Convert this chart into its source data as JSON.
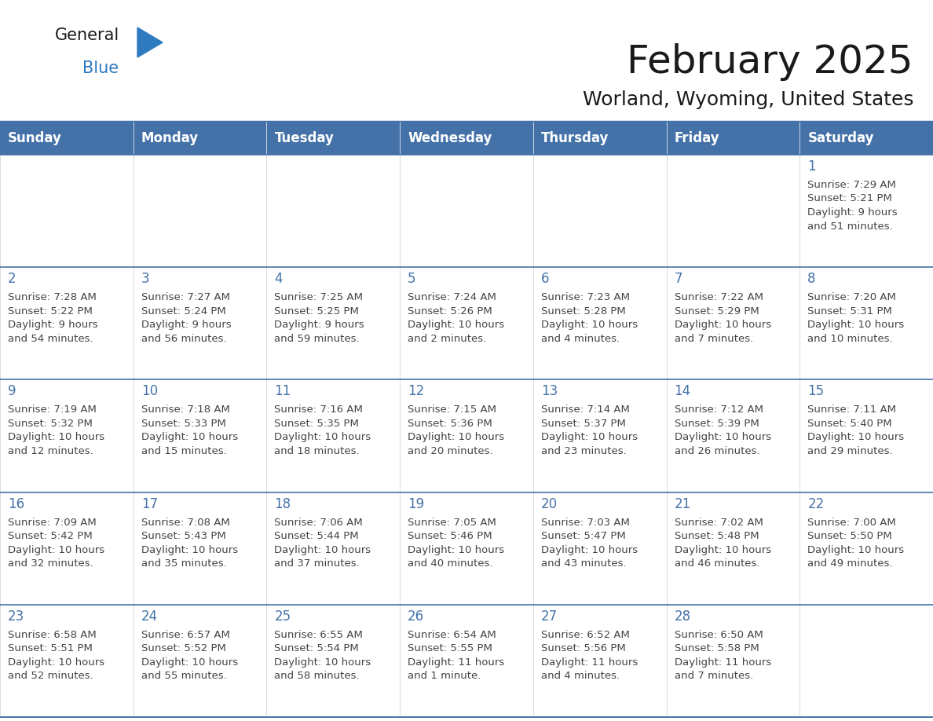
{
  "title": "February 2025",
  "subtitle": "Worland, Wyoming, United States",
  "days_of_week": [
    "Sunday",
    "Monday",
    "Tuesday",
    "Wednesday",
    "Thursday",
    "Friday",
    "Saturday"
  ],
  "header_bg": "#4472a8",
  "header_text": "#ffffff",
  "cell_bg": "#ffffff",
  "cell_bg_alt": "#f0f0f0",
  "border_color": "#4472a8",
  "row_border_color": "#4472a8",
  "day_num_color": "#4472a8",
  "text_color": "#444444",
  "title_color": "#1a1a1a",
  "logo_general_color": "#1a1a1a",
  "logo_blue_color": "#2e7abf",
  "logo_triangle_color": "#2e7abf",
  "calendar_data": [
    [
      {
        "day": null,
        "info": ""
      },
      {
        "day": null,
        "info": ""
      },
      {
        "day": null,
        "info": ""
      },
      {
        "day": null,
        "info": ""
      },
      {
        "day": null,
        "info": ""
      },
      {
        "day": null,
        "info": ""
      },
      {
        "day": 1,
        "info": "Sunrise: 7:29 AM\nSunset: 5:21 PM\nDaylight: 9 hours\nand 51 minutes."
      }
    ],
    [
      {
        "day": 2,
        "info": "Sunrise: 7:28 AM\nSunset: 5:22 PM\nDaylight: 9 hours\nand 54 minutes."
      },
      {
        "day": 3,
        "info": "Sunrise: 7:27 AM\nSunset: 5:24 PM\nDaylight: 9 hours\nand 56 minutes."
      },
      {
        "day": 4,
        "info": "Sunrise: 7:25 AM\nSunset: 5:25 PM\nDaylight: 9 hours\nand 59 minutes."
      },
      {
        "day": 5,
        "info": "Sunrise: 7:24 AM\nSunset: 5:26 PM\nDaylight: 10 hours\nand 2 minutes."
      },
      {
        "day": 6,
        "info": "Sunrise: 7:23 AM\nSunset: 5:28 PM\nDaylight: 10 hours\nand 4 minutes."
      },
      {
        "day": 7,
        "info": "Sunrise: 7:22 AM\nSunset: 5:29 PM\nDaylight: 10 hours\nand 7 minutes."
      },
      {
        "day": 8,
        "info": "Sunrise: 7:20 AM\nSunset: 5:31 PM\nDaylight: 10 hours\nand 10 minutes."
      }
    ],
    [
      {
        "day": 9,
        "info": "Sunrise: 7:19 AM\nSunset: 5:32 PM\nDaylight: 10 hours\nand 12 minutes."
      },
      {
        "day": 10,
        "info": "Sunrise: 7:18 AM\nSunset: 5:33 PM\nDaylight: 10 hours\nand 15 minutes."
      },
      {
        "day": 11,
        "info": "Sunrise: 7:16 AM\nSunset: 5:35 PM\nDaylight: 10 hours\nand 18 minutes."
      },
      {
        "day": 12,
        "info": "Sunrise: 7:15 AM\nSunset: 5:36 PM\nDaylight: 10 hours\nand 20 minutes."
      },
      {
        "day": 13,
        "info": "Sunrise: 7:14 AM\nSunset: 5:37 PM\nDaylight: 10 hours\nand 23 minutes."
      },
      {
        "day": 14,
        "info": "Sunrise: 7:12 AM\nSunset: 5:39 PM\nDaylight: 10 hours\nand 26 minutes."
      },
      {
        "day": 15,
        "info": "Sunrise: 7:11 AM\nSunset: 5:40 PM\nDaylight: 10 hours\nand 29 minutes."
      }
    ],
    [
      {
        "day": 16,
        "info": "Sunrise: 7:09 AM\nSunset: 5:42 PM\nDaylight: 10 hours\nand 32 minutes."
      },
      {
        "day": 17,
        "info": "Sunrise: 7:08 AM\nSunset: 5:43 PM\nDaylight: 10 hours\nand 35 minutes."
      },
      {
        "day": 18,
        "info": "Sunrise: 7:06 AM\nSunset: 5:44 PM\nDaylight: 10 hours\nand 37 minutes."
      },
      {
        "day": 19,
        "info": "Sunrise: 7:05 AM\nSunset: 5:46 PM\nDaylight: 10 hours\nand 40 minutes."
      },
      {
        "day": 20,
        "info": "Sunrise: 7:03 AM\nSunset: 5:47 PM\nDaylight: 10 hours\nand 43 minutes."
      },
      {
        "day": 21,
        "info": "Sunrise: 7:02 AM\nSunset: 5:48 PM\nDaylight: 10 hours\nand 46 minutes."
      },
      {
        "day": 22,
        "info": "Sunrise: 7:00 AM\nSunset: 5:50 PM\nDaylight: 10 hours\nand 49 minutes."
      }
    ],
    [
      {
        "day": 23,
        "info": "Sunrise: 6:58 AM\nSunset: 5:51 PM\nDaylight: 10 hours\nand 52 minutes."
      },
      {
        "day": 24,
        "info": "Sunrise: 6:57 AM\nSunset: 5:52 PM\nDaylight: 10 hours\nand 55 minutes."
      },
      {
        "day": 25,
        "info": "Sunrise: 6:55 AM\nSunset: 5:54 PM\nDaylight: 10 hours\nand 58 minutes."
      },
      {
        "day": 26,
        "info": "Sunrise: 6:54 AM\nSunset: 5:55 PM\nDaylight: 11 hours\nand 1 minute."
      },
      {
        "day": 27,
        "info": "Sunrise: 6:52 AM\nSunset: 5:56 PM\nDaylight: 11 hours\nand 4 minutes."
      },
      {
        "day": 28,
        "info": "Sunrise: 6:50 AM\nSunset: 5:58 PM\nDaylight: 11 hours\nand 7 minutes."
      },
      {
        "day": null,
        "info": ""
      }
    ]
  ]
}
